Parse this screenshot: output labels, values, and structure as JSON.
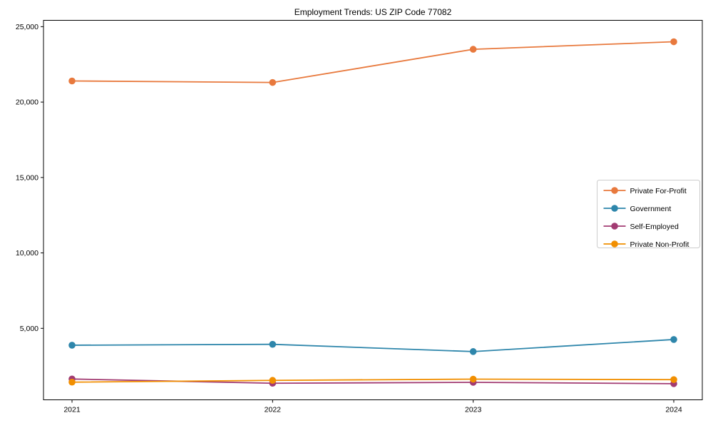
{
  "title": "Employment Trends: US ZIP Code 77082",
  "chart_data": {
    "type": "line",
    "title": "Employment Trends: US ZIP Code 77082",
    "xlabel": "",
    "ylabel": "",
    "x": [
      2021,
      2022,
      2023,
      2024
    ],
    "xtick_labels": [
      "2021",
      "2022",
      "2023",
      "2024"
    ],
    "yticks": [
      5000,
      10000,
      15000,
      20000,
      25000
    ],
    "ytick_labels": [
      "5,000",
      "10,000",
      "15,000",
      "20,000",
      "25,000"
    ],
    "ylim": [
      260,
      25420
    ],
    "grid": false,
    "marker": "circle",
    "legend_position": "center right",
    "series": [
      {
        "name": "Private For-Profit",
        "color": "#E8793D",
        "values": [
          21400,
          21300,
          23500,
          24000
        ]
      },
      {
        "name": "Government",
        "color": "#2E86AB",
        "values": [
          3880,
          3940,
          3460,
          4260
        ]
      },
      {
        "name": "Self-Employed",
        "color": "#A23B72",
        "values": [
          1640,
          1360,
          1420,
          1330
        ]
      },
      {
        "name": "Private Non-Profit",
        "color": "#F18F01",
        "values": [
          1430,
          1550,
          1630,
          1600
        ]
      }
    ]
  },
  "axes": {
    "spine_color": "#000000",
    "tick_color": "#000000",
    "label_color": "#000000",
    "background": "#ffffff",
    "legend_border": "#cccccc",
    "legend_background": "#ffffff"
  }
}
